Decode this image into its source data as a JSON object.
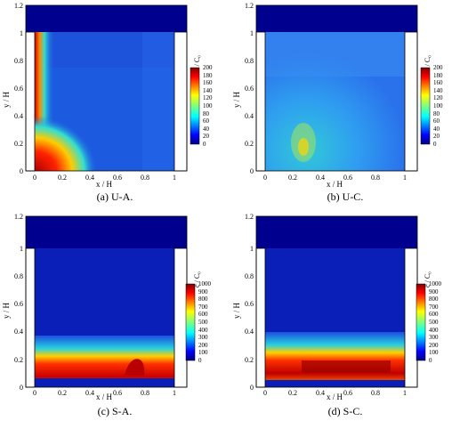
{
  "colors": {
    "frame": "#000000",
    "background": "#ffffff",
    "low_concentration": "#0a0aa8",
    "high_concentration": "#b20000"
  },
  "colormap_name": "jet",
  "panels": [
    {
      "caption": "(a) U-A.",
      "x_label": "x / H",
      "y_label": "y / H",
      "colorbar_label": "c̄ / C₀",
      "colorbar_ticks": [
        "0",
        "20",
        "40",
        "60",
        "80",
        "100",
        "120",
        "140",
        "160",
        "180",
        "200"
      ],
      "x_ticks": [
        "0",
        "0.2",
        "0.4",
        "0.6",
        "0.8",
        "1"
      ],
      "y_ticks": [
        "0",
        "0.2",
        "0.4",
        "0.6",
        "0.8",
        "1",
        "1.2"
      ]
    },
    {
      "caption": "(b) U-C.",
      "x_label": "x / H",
      "y_label": "y / H",
      "colorbar_label": "c̄ / C₀",
      "colorbar_ticks": [
        "0",
        "20",
        "40",
        "60",
        "80",
        "100",
        "120",
        "140",
        "160",
        "180",
        "200"
      ],
      "x_ticks": [
        "0",
        "0.2",
        "0.4",
        "0.6",
        "0.8",
        "1"
      ],
      "y_ticks": [
        "0",
        "0.2",
        "0.4",
        "0.6",
        "0.8",
        "1",
        "1.2"
      ]
    },
    {
      "caption": "(c) S-A.",
      "x_label": "x / H",
      "y_label": "y / H",
      "colorbar_label": "c̄ / C₀",
      "colorbar_ticks": [
        "0",
        "100",
        "200",
        "300",
        "400",
        "500",
        "600",
        "700",
        "800",
        "900",
        "1000"
      ],
      "x_ticks": [
        "0",
        "0.2",
        "0.4",
        "0.6",
        "0.8",
        "1"
      ],
      "y_ticks": [
        "0",
        "0.2",
        "0.4",
        "0.6",
        "0.8",
        "1",
        "1.2"
      ]
    },
    {
      "caption": "(d) S-C.",
      "x_label": "x / H",
      "y_label": "y / H",
      "colorbar_label": "c̄ / C₀",
      "colorbar_ticks": [
        "0",
        "100",
        "200",
        "300",
        "400",
        "500",
        "600",
        "700",
        "800",
        "900",
        "1000"
      ],
      "x_ticks": [
        "0",
        "0.2",
        "0.4",
        "0.6",
        "0.8",
        "1"
      ],
      "y_ticks": [
        "0",
        "0.2",
        "0.4",
        "0.6",
        "0.8",
        "1",
        "1.2"
      ]
    }
  ]
}
